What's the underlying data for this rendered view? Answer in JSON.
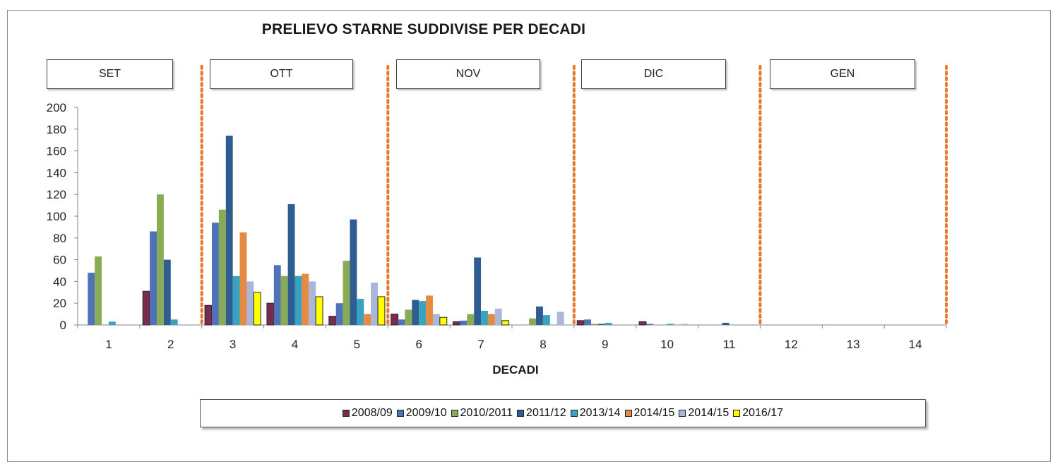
{
  "chart_data": {
    "type": "bar",
    "title": "PRELIEVO STARNE SUDDIVISE PER DECADI",
    "xlabel": "DECADI",
    "ylabel": "",
    "ylim": [
      0,
      200
    ],
    "yticks": [
      "0",
      "20",
      "40",
      "60",
      "80",
      "100",
      "120",
      "140",
      "160",
      "180",
      "200"
    ],
    "categories": [
      "1",
      "2",
      "3",
      "4",
      "5",
      "6",
      "7",
      "8",
      "9",
      "10",
      "11",
      "12",
      "13",
      "14"
    ],
    "months": [
      "SET",
      "OTT",
      "NOV",
      "DIC",
      "GEN"
    ],
    "legend_position": "bottom",
    "series": [
      {
        "name": "2008/09",
        "color": "#7b2b52",
        "values": [
          0,
          31,
          18,
          20,
          8,
          10,
          3,
          0,
          4,
          3,
          0,
          0,
          0,
          0
        ]
      },
      {
        "name": "2009/10",
        "color": "#4f72b8",
        "values": [
          48,
          86,
          94,
          55,
          20,
          5,
          4,
          0,
          5,
          1,
          0,
          0,
          0,
          0
        ]
      },
      {
        "name": "2010/2011",
        "color": "#8aab55",
        "values": [
          63,
          120,
          106,
          45,
          59,
          14,
          10,
          6,
          1,
          0,
          0,
          0,
          0,
          0
        ]
      },
      {
        "name": "2011/12",
        "color": "#2f5d92",
        "values": [
          0,
          60,
          174,
          111,
          97,
          23,
          62,
          17,
          1,
          0,
          2,
          0,
          0,
          0
        ]
      },
      {
        "name": "2013/14",
        "color": "#39a3bf",
        "values": [
          3,
          5,
          45,
          45,
          24,
          22,
          13,
          9,
          2,
          1,
          0,
          0,
          0,
          0
        ]
      },
      {
        "name": "2014/15",
        "color": "#e68a43",
        "values": [
          0,
          0,
          85,
          47,
          10,
          27,
          10,
          0,
          0,
          0,
          0,
          0,
          0,
          0
        ]
      },
      {
        "name": "2014/15",
        "color": "#a9b8da",
        "values": [
          0,
          0,
          40,
          40,
          39,
          10,
          15,
          12,
          0,
          1,
          0,
          0,
          0,
          0
        ]
      },
      {
        "name": "2016/17",
        "color": "#ffff00",
        "values": [
          0,
          0,
          30,
          26,
          26,
          7,
          4,
          0,
          0,
          0,
          0,
          0,
          0,
          0
        ]
      }
    ]
  }
}
